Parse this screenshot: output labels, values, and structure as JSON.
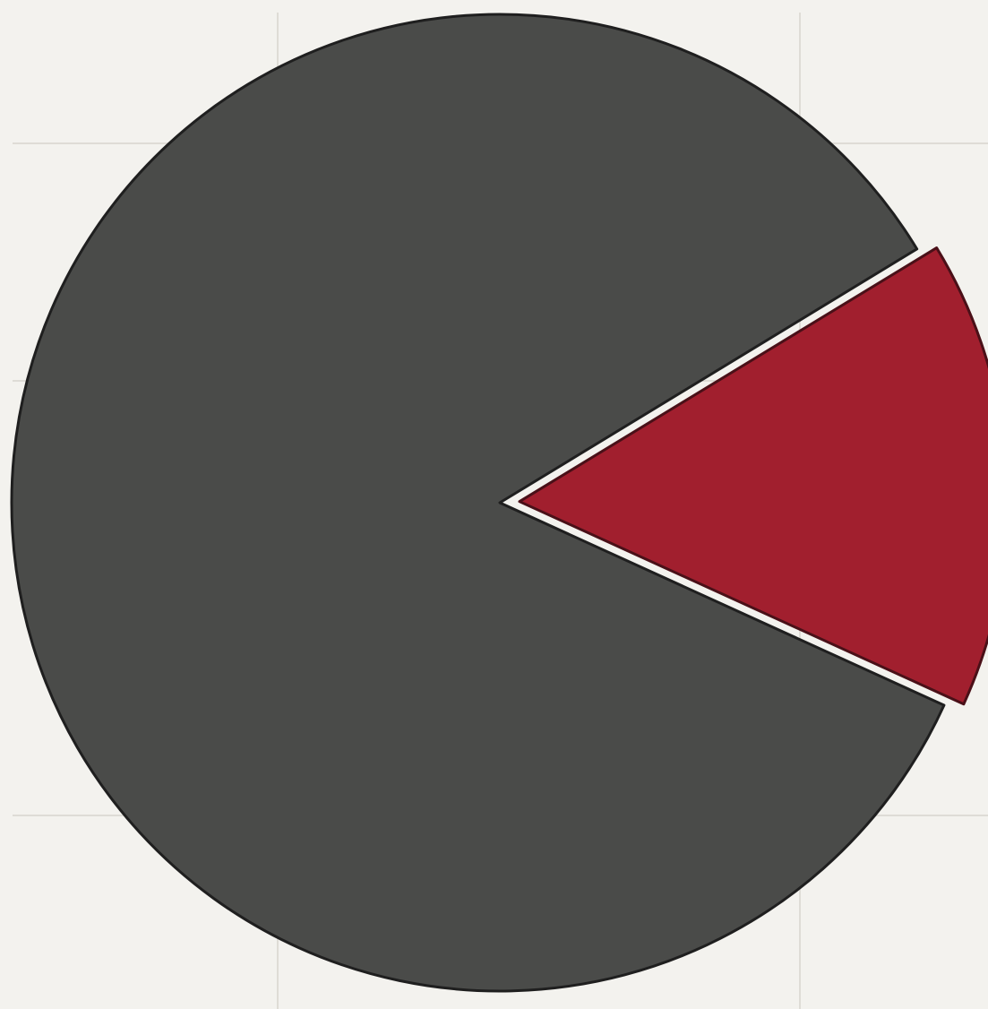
{
  "chart_data": {
    "type": "pie",
    "grid": true,
    "legend": "none",
    "slices": [
      {
        "value": 84.5,
        "color": "#4a4b49",
        "exploded": false
      },
      {
        "value": 15.5,
        "color": "#a11f2e",
        "exploded": true
      }
    ]
  },
  "colors": {
    "background": "#f3f2ee",
    "gridline": "#dedcd6",
    "slice_stroke": "#1f1f1f",
    "exploded_slice_stroke": "#4a1018"
  }
}
